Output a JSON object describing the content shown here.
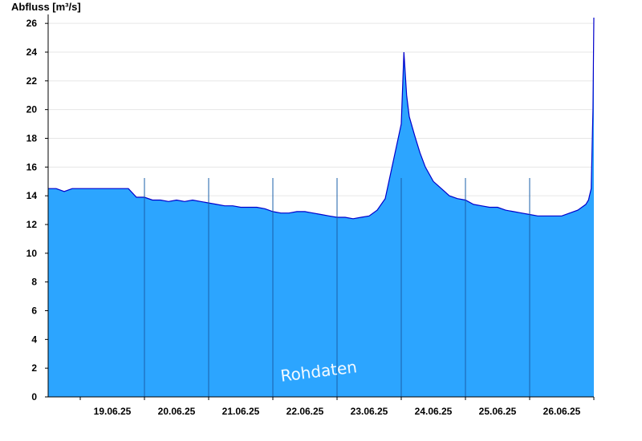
{
  "chart_data": {
    "type": "area",
    "title": "",
    "ylabel": "Abfluss [m³/s]",
    "xlabel": "",
    "ylim": [
      0,
      26.4
    ],
    "yticks": [
      0,
      2,
      4,
      6,
      8,
      10,
      12,
      14,
      16,
      18,
      20,
      22,
      24,
      26
    ],
    "x_range": [
      "18.06.25 12:00",
      "27.06.25 00:00"
    ],
    "x_tick_labels": [
      "19.06.25",
      "20.06.25",
      "21.06.25",
      "22.06.25",
      "23.06.25",
      "24.06.25",
      "25.06.25",
      "26.06.25"
    ],
    "day_separators": [
      "19.06.25 24:00",
      "20.06.25 24:00",
      "21.06.25 24:00",
      "22.06.25 24:00",
      "23.06.25 24:00",
      "24.06.25 24:00",
      "25.06.25 24:00"
    ],
    "grid": "horizontal",
    "fill_color": "#2ca5ff",
    "line_color": "#0000cc",
    "annotation": "Rohdaten",
    "series": [
      {
        "x": [
          "18.06.25 12:00",
          "18.06.25 15:00",
          "18.06.25 18:00",
          "18.06.25 21:00",
          "19.06.25 00:00",
          "19.06.25 03:00",
          "19.06.25 06:00",
          "19.06.25 09:00",
          "19.06.25 12:00",
          "19.06.25 15:00",
          "19.06.25 18:00",
          "19.06.25 21:00",
          "20.06.25 00:00",
          "20.06.25 03:00",
          "20.06.25 06:00",
          "20.06.25 09:00",
          "20.06.25 12:00",
          "20.06.25 15:00",
          "20.06.25 18:00",
          "20.06.25 21:00",
          "21.06.25 00:00",
          "21.06.25 03:00",
          "21.06.25 06:00",
          "21.06.25 09:00",
          "21.06.25 12:00",
          "21.06.25 15:00",
          "21.06.25 18:00",
          "21.06.25 21:00",
          "22.06.25 00:00",
          "22.06.25 03:00",
          "22.06.25 06:00",
          "22.06.25 09:00",
          "22.06.25 12:00",
          "22.06.25 15:00",
          "22.06.25 18:00",
          "22.06.25 21:00",
          "23.06.25 00:00",
          "23.06.25 03:00",
          "23.06.25 06:00",
          "23.06.25 09:00",
          "23.06.25 12:00",
          "23.06.25 15:00",
          "23.06.25 18:00",
          "23.06.25 21:00",
          "24.06.25 00:00",
          "24.06.25 01:00",
          "24.06.25 02:00",
          "24.06.25 03:00",
          "24.06.25 05:00",
          "24.06.25 07:00",
          "24.06.25 09:00",
          "24.06.25 12:00",
          "24.06.25 15:00",
          "24.06.25 18:00",
          "24.06.25 21:00",
          "25.06.25 00:00",
          "25.06.25 03:00",
          "25.06.25 06:00",
          "25.06.25 09:00",
          "25.06.25 12:00",
          "25.06.25 15:00",
          "25.06.25 18:00",
          "25.06.25 21:00",
          "26.06.25 00:00",
          "26.06.25 03:00",
          "26.06.25 06:00",
          "26.06.25 09:00",
          "26.06.25 12:00",
          "26.06.25 15:00",
          "26.06.25 18:00",
          "26.06.25 21:00",
          "26.06.25 22:00",
          "26.06.25 23:00",
          "26.06.25 23:40",
          "27.06.25 00:00"
        ],
        "y": [
          14.5,
          14.5,
          14.3,
          14.5,
          14.5,
          14.5,
          14.5,
          14.5,
          14.5,
          14.5,
          14.5,
          13.9,
          13.9,
          13.7,
          13.7,
          13.6,
          13.7,
          13.6,
          13.7,
          13.6,
          13.5,
          13.4,
          13.3,
          13.3,
          13.2,
          13.2,
          13.2,
          13.1,
          12.9,
          12.8,
          12.8,
          12.9,
          12.9,
          12.8,
          12.7,
          12.6,
          12.5,
          12.5,
          12.4,
          12.5,
          12.6,
          13.0,
          13.8,
          16.4,
          19.0,
          24.0,
          21.0,
          19.5,
          18.2,
          17.0,
          16.0,
          15.0,
          14.5,
          14.0,
          13.8,
          13.7,
          13.4,
          13.3,
          13.2,
          13.2,
          13.0,
          12.9,
          12.8,
          12.7,
          12.6,
          12.6,
          12.6,
          12.6,
          12.8,
          13.0,
          13.4,
          13.7,
          14.5,
          20.0,
          26.4
        ]
      }
    ]
  }
}
